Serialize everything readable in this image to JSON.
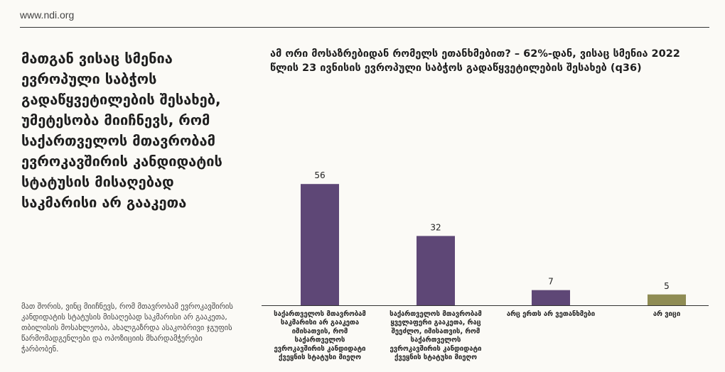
{
  "site_url": "www.ndi.org",
  "headline": "მათგან ვისაც სმენია ევროპული საბჭოს გადაწყვეტილების შესახებ, უმეტესობა მიიჩნევს, რომ საქართველოს მთავრობამ ევროკავშირის კანდიდატის სტატუსის მისაღებად საკმარისი არ გააკეთა",
  "footnote": "მათ შორის, ვინც მიიჩნევს, რომ მთავრობამ ევროკავშირის კანდიდატის სტატუსის მისაღებად საკმარისი არ გააკეთა, თბილისის მოსახლეობა, ახალგაზრდა ასაკობრივი ჯგუფის წარმომადგენლები და ოპოზიციის მხარდამჭერები ჭარბობენ.",
  "chart_title": "ამ ორი მოსაზრებიდან რომელს ეთანხმებით? – 62%-დან, ვისაც სმენია 2022 წლის 23 ივნისის ევროპული საბჭოს გადაწყვეტილების შესახებ (q36)",
  "colors": {
    "purple": "#5e4776",
    "olive": "#8f8c54",
    "axis": "#333333"
  },
  "chart_data": {
    "type": "bar",
    "categories": [
      "საქართველოს მთავრობამ საკმარისი არ გააკეთა იმისათვის, რომ საქართველოს ევროკავშირის კანდიდატი ქვეყნის სტატუსი მიეღო",
      "საქართველოს მთავრობამ ყველაფერი გააკეთა, რაც შეეძლო, იმისათვის, რომ საქართველოს ევროკავშირის კანდიდატი ქვეყნის სტატუსი მიეღო",
      "არც ერთს არ ვეთანხმები",
      "არ ვიცი"
    ],
    "category_lines": [
      [
        "საქართველოს მთავრობამ",
        "საკმარისი არ გააკეთა",
        "იმისათვის, რომ",
        "საქართველოს",
        "ევროკავშირის კანდიდატი",
        "ქვეყნის სტატუსი მიეღო"
      ],
      [
        "საქართველოს მთავრობამ",
        "ყველაფერი გააკეთა, რაც",
        "შეეძლო, იმისათვის, რომ",
        "საქართველოს",
        "ევროკავშირის კანდიდატი",
        "ქვეყნის სტატუსი მიეღო"
      ],
      [
        "არც ერთს არ ვეთანხმები"
      ],
      [
        "არ ვიცი"
      ]
    ],
    "values": [
      56,
      32,
      7,
      5
    ],
    "bar_colors": [
      "#5e4776",
      "#5e4776",
      "#5e4776",
      "#8f8c54"
    ],
    "ylim": [
      0,
      60
    ]
  }
}
